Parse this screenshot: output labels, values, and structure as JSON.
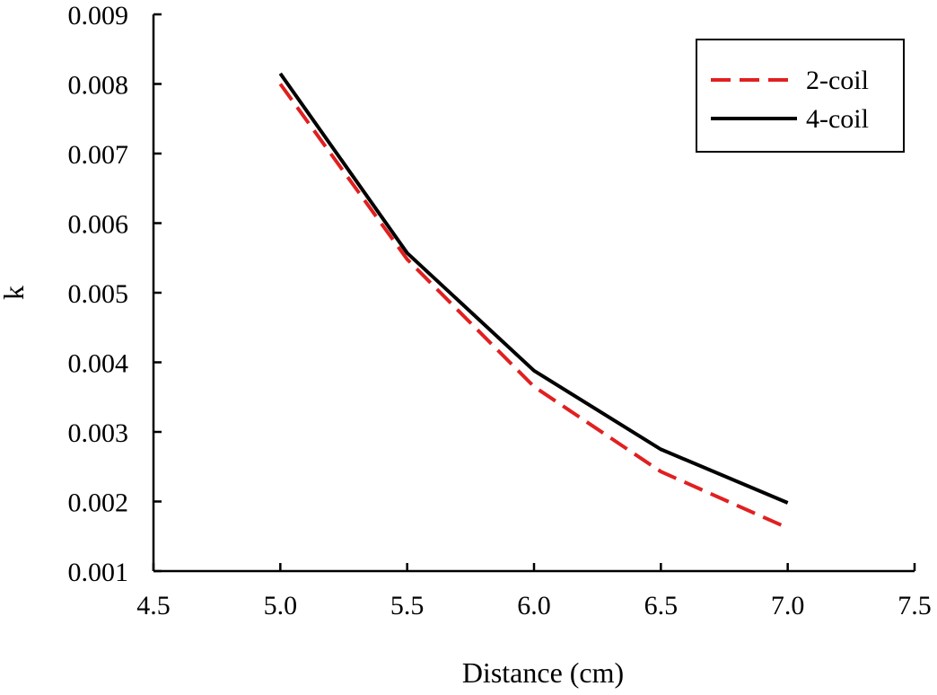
{
  "chart_data": {
    "type": "line",
    "title": "",
    "xlabel": "Distance (cm)",
    "ylabel": "k",
    "xlim": [
      4.5,
      7.5
    ],
    "ylim": [
      0.001,
      0.009
    ],
    "x_ticks": [
      "4.5",
      "5.0",
      "5.5",
      "6.0",
      "6.5",
      "7.0",
      "7.5"
    ],
    "y_ticks": [
      "0.001",
      "0.002",
      "0.003",
      "0.004",
      "0.005",
      "0.006",
      "0.007",
      "0.008",
      "0.009"
    ],
    "grid": false,
    "legend_position": "top-right",
    "series": [
      {
        "name": "2-coil",
        "color": "#e02020",
        "dash": "dashed",
        "x": [
          5.0,
          5.5,
          6.0,
          6.5,
          7.0
        ],
        "y": [
          0.008,
          0.00548,
          0.00365,
          0.00243,
          0.00162
        ]
      },
      {
        "name": "4-coil",
        "color": "#000000",
        "dash": "solid",
        "x": [
          5.0,
          5.5,
          6.0,
          6.5,
          7.0
        ],
        "y": [
          0.00815,
          0.00557,
          0.00388,
          0.00275,
          0.00198
        ]
      }
    ]
  }
}
